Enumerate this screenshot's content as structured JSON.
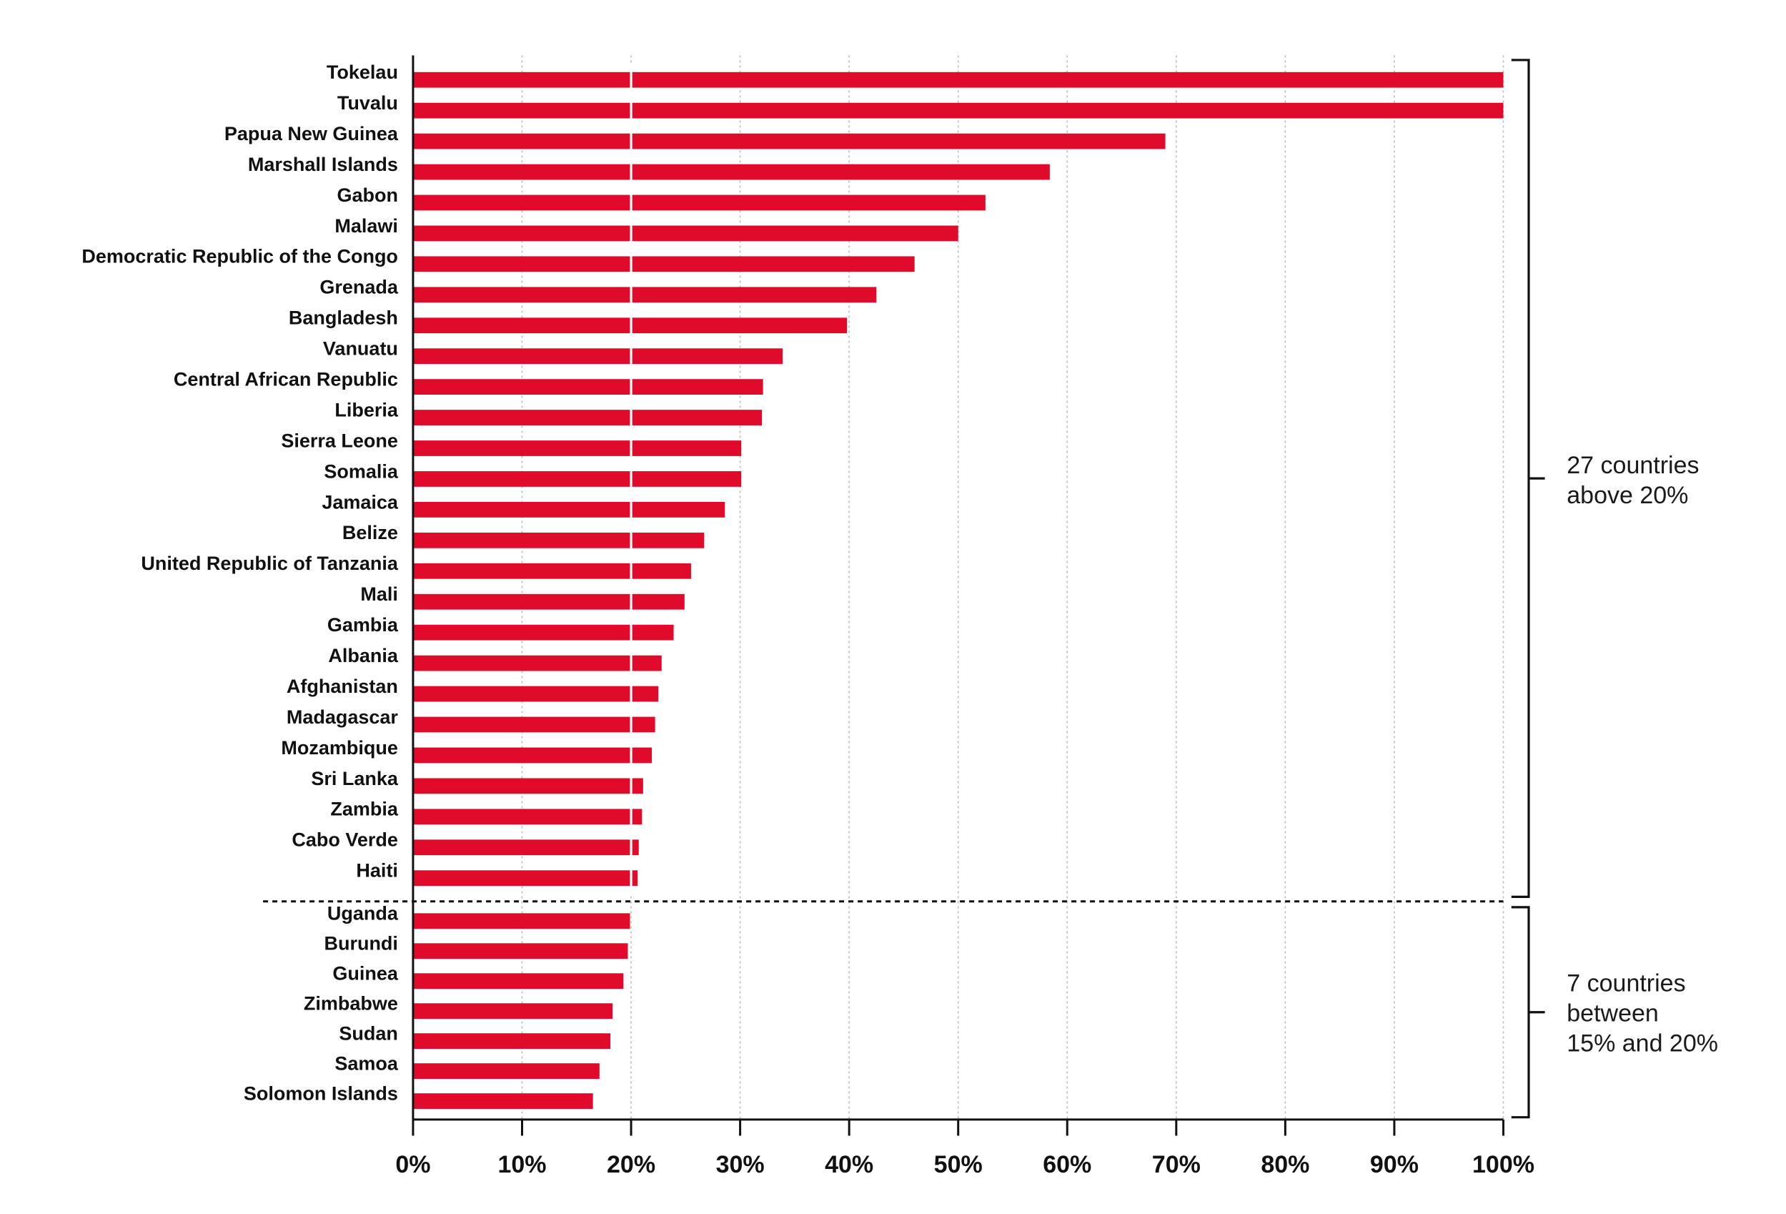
{
  "chart_data": {
    "type": "bar",
    "orientation": "horizontal",
    "categories": [
      "Tokelau",
      "Tuvalu",
      "Papua New Guinea",
      "Marshall Islands",
      "Gabon",
      "Malawi",
      "Democratic Republic of the Congo",
      "Grenada",
      "Bangladesh",
      "Vanuatu",
      "Central African Republic",
      "Liberia",
      "Sierra Leone",
      "Somalia",
      "Jamaica",
      "Belize",
      "United Republic of Tanzania",
      "Mali",
      "Gambia",
      "Albania",
      "Afghanistan",
      "Madagascar",
      "Mozambique",
      "Sri Lanka",
      "Zambia",
      "Cabo Verde",
      "Haiti",
      "Uganda",
      "Burundi",
      "Guinea",
      "Zimbabwe",
      "Sudan",
      "Samoa",
      "Solomon Islands"
    ],
    "values": [
      100,
      100,
      69,
      58.4,
      52.5,
      50,
      46,
      42.5,
      39.8,
      33.9,
      32.1,
      32,
      30.1,
      30.1,
      28.6,
      26.7,
      25.5,
      24.9,
      23.9,
      22.8,
      22.5,
      22.2,
      21.9,
      21.1,
      21,
      20.7,
      20.6,
      19.9,
      19.7,
      19.3,
      18.3,
      18.1,
      17.1,
      16.5
    ],
    "xlim": [
      0,
      100
    ],
    "x_ticks": [
      "0%",
      "10%",
      "20%",
      "30%",
      "40%",
      "50%",
      "60%",
      "70%",
      "80%",
      "90%",
      "100%"
    ],
    "grid": "vertical dotted",
    "reference_line": {
      "value": 20
    },
    "color": "#e00b2b",
    "groups": [
      {
        "label_lines": [
          "27 countries",
          "above 20%"
        ],
        "count": 27
      },
      {
        "label_lines": [
          "7 countries",
          "between",
          "15% and 20%"
        ],
        "count": 7
      }
    ]
  }
}
